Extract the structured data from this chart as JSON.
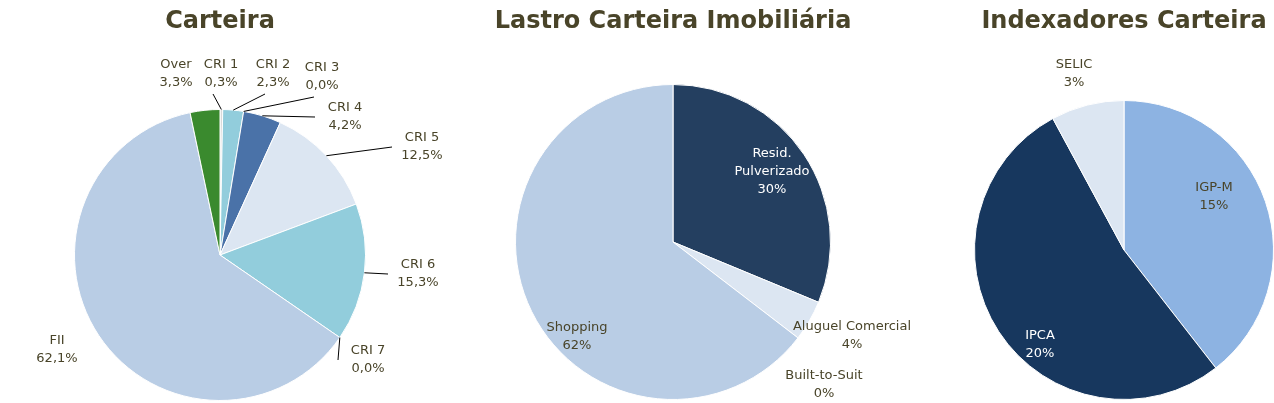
{
  "chart_data": [
    {
      "type": "pie",
      "title": "Carteira",
      "categories": [
        "CRI 1",
        "CRI 2",
        "CRI 3",
        "CRI 4",
        "CRI 5",
        "CRI 6",
        "CRI 7",
        "FII",
        "Over"
      ],
      "values": [
        0.3,
        2.3,
        0.0,
        4.2,
        12.5,
        15.3,
        0.0,
        62.1,
        3.3
      ],
      "value_labels": [
        "0,3%",
        "2,3%",
        "0,0%",
        "4,2%",
        "12,5%",
        "15,3%",
        "0,0%",
        "62,1%",
        "3,3%"
      ],
      "colors": [
        "#d9d9d9",
        "#92cddc",
        "#31859c",
        "#4a72a8",
        "#dce6f2",
        "#92cddc",
        "#4bacc6",
        "#b9cde5",
        "#3a8a2e"
      ]
    },
    {
      "type": "pie",
      "title": "Lastro Carteira Imobiliária",
      "categories": [
        "Resid. Pulverizado",
        "Aluguel Comercial",
        "Built-to-Suit",
        "Shopping"
      ],
      "values": [
        30,
        4,
        0,
        62
      ],
      "value_labels": [
        "30%",
        "4%",
        "0%",
        "62%"
      ],
      "colors": [
        "#243f60",
        "#dce6f2",
        "#c6d9f1",
        "#b9cde5"
      ]
    },
    {
      "type": "pie",
      "title": "Indexadores Carteira",
      "categories": [
        "IGP-M",
        "IPCA",
        "SELIC"
      ],
      "values": [
        15,
        20,
        3
      ],
      "value_labels": [
        "15%",
        "20%",
        "3%"
      ],
      "colors": [
        "#8db3e2",
        "#17375e",
        "#dce6f2"
      ]
    }
  ]
}
